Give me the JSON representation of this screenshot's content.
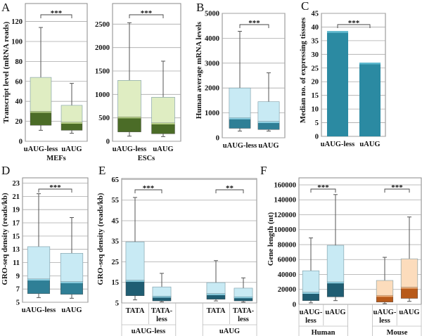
{
  "chart_data": [
    {
      "id": "A1",
      "panel_letter": "A",
      "type": "box",
      "ylabel": "Transcript level (mRNA reads)",
      "sublabel": "MEFs",
      "ylim": [
        0,
        138
      ],
      "yticks": [
        "0",
        "20",
        "40",
        "60",
        "80",
        "100",
        "120"
      ],
      "ytick_values": [
        0,
        20,
        40,
        60,
        80,
        100,
        120
      ],
      "colors": {
        "light": "#dfedc2",
        "dark": "#4b6c27",
        "median": "#b6cf86"
      },
      "categories": [
        {
          "label": [
            "uAUG-less"
          ],
          "min": 11,
          "q1": 16,
          "median": 30,
          "q3": 64,
          "max": 114
        },
        {
          "label": [
            "uAUG"
          ],
          "min": 8,
          "q1": 11,
          "median": 19,
          "q3": 36,
          "max": 58
        }
      ],
      "significance": [
        {
          "between": [
            0,
            1
          ],
          "label": "***"
        }
      ]
    },
    {
      "id": "A2",
      "panel_letter": "",
      "type": "box",
      "ylabel": "",
      "sublabel": "ESCs",
      "ylim": [
        0,
        2940
      ],
      "yticks": [
        "0",
        "500",
        "1000",
        "1500",
        "2000",
        "2500"
      ],
      "ytick_values": [
        0,
        500,
        1000,
        1500,
        2000,
        2500
      ],
      "colors": {
        "light": "#dfedc2",
        "dark": "#4b6c27",
        "median": "#b6cf86"
      },
      "categories": [
        {
          "label": [
            "uAUG-less"
          ],
          "min": 110,
          "q1": 200,
          "median": 520,
          "q3": 1300,
          "max": 2530
        },
        {
          "label": [
            "uAUG"
          ],
          "min": 100,
          "q1": 160,
          "median": 390,
          "q3": 940,
          "max": 1710
        }
      ],
      "significance": [
        {
          "between": [
            0,
            1
          ],
          "label": "***"
        }
      ]
    },
    {
      "id": "B",
      "panel_letter": "B",
      "type": "box",
      "ylabel": "Human average mRNA levels",
      "sublabel": "",
      "ylim": [
        0,
        5000
      ],
      "yticks": [
        "0",
        "1000",
        "2000",
        "3000",
        "4000",
        "5000"
      ],
      "ytick_values": [
        0,
        1000,
        2000,
        3000,
        4000,
        5000
      ],
      "colors": {
        "light": "#c8eaf4",
        "dark": "#2f7f96",
        "median": "#8fd0e2"
      },
      "categories": [
        {
          "label": [
            "uAUG-less"
          ],
          "min": 270,
          "q1": 380,
          "median": 800,
          "q3": 2000,
          "max": 4280
        },
        {
          "label": [
            "uAUG"
          ],
          "min": 270,
          "q1": 330,
          "median": 650,
          "q3": 1450,
          "max": 2610
        }
      ],
      "significance": [
        {
          "between": [
            0,
            1
          ],
          "label": "***"
        }
      ]
    },
    {
      "id": "C",
      "panel_letter": "C",
      "type": "bar",
      "ylabel": "Median no. of expressing tissues",
      "sublabel": "",
      "ylim": [
        0,
        45
      ],
      "yticks": [
        "0",
        "5",
        "10",
        "15",
        "20",
        "25",
        "30",
        "35",
        "40",
        "45"
      ],
      "ytick_values": [
        0,
        5,
        10,
        15,
        20,
        25,
        30,
        35,
        40,
        45
      ],
      "colors": {
        "bar": "#2b8aa2",
        "bar_top": "#5fb9cf"
      },
      "categories": [
        {
          "label": [
            "uAUG-less"
          ],
          "value": 38.5
        },
        {
          "label": [
            "uAUG"
          ],
          "value": 27
        }
      ],
      "significance": [
        {
          "between": [
            0,
            1
          ],
          "label": "***"
        }
      ]
    },
    {
      "id": "D",
      "panel_letter": "D",
      "type": "box",
      "ylabel": "GRO-seq density (reads/kb)",
      "sublabel": "",
      "ylim": [
        5,
        23.8
      ],
      "yticks": [
        "5",
        "7",
        "9",
        "11",
        "13",
        "15",
        "17",
        "19",
        "21",
        "23"
      ],
      "ytick_values": [
        5,
        7,
        9,
        11,
        13,
        15,
        17,
        19,
        21,
        23
      ],
      "colors": {
        "light": "#c8eaf4",
        "dark": "#2f7f96",
        "median": "#8fd0e2"
      },
      "categories": [
        {
          "label": [
            "uAUG-less"
          ],
          "min": 5.7,
          "q1": 6.3,
          "median": 8.5,
          "q3": 13.4,
          "max": 21.4
        },
        {
          "label": [
            "uAUG"
          ],
          "min": 5.6,
          "q1": 6.2,
          "median": 8.1,
          "q3": 12.4,
          "max": 17.8
        }
      ],
      "significance": [
        {
          "between": [
            0,
            1
          ],
          "label": "***"
        }
      ]
    },
    {
      "id": "E",
      "panel_letter": "E",
      "type": "box",
      "ylabel": "GRO-seq density (reads/kb)",
      "sublabel": "",
      "ylim": [
        5,
        65.5
      ],
      "yticks": [
        "5",
        "15",
        "25",
        "35",
        "45",
        "55",
        "65"
      ],
      "ytick_values": [
        5,
        15,
        25,
        35,
        45,
        55,
        65
      ],
      "colors": {
        "light": "#c8eaf4",
        "dark": "#1f5d72",
        "median": "#8fd0e2"
      },
      "categories": [
        {
          "label": [
            "TATA"
          ],
          "min": 6.5,
          "q1": 8.5,
          "median": 16,
          "q3": 34.7,
          "max": 56.3
        },
        {
          "label": [
            "TATA-",
            "less"
          ],
          "min": 5.5,
          "q1": 6,
          "median": 8.3,
          "q3": 12.8,
          "max": 19.4
        },
        {
          "label": [
            "TATA"
          ],
          "min": 6,
          "q1": 6.8,
          "median": 9.5,
          "q3": 14.9,
          "max": 25.6
        },
        {
          "label": [
            "TATA-",
            "less"
          ],
          "min": 5.4,
          "q1": 6,
          "median": 8,
          "q3": 12.2,
          "max": 17.2
        }
      ],
      "groups": [
        {
          "label": "uAUG-less",
          "members": [
            0,
            1
          ]
        },
        {
          "label": "uAUG",
          "members": [
            2,
            3
          ]
        }
      ],
      "significance": [
        {
          "between": [
            0,
            1
          ],
          "label": "***"
        },
        {
          "between": [
            2,
            3
          ],
          "label": "**"
        }
      ]
    },
    {
      "id": "F",
      "panel_letter": "F",
      "type": "box",
      "ylabel": "Gene length (nt)",
      "sublabel": "",
      "ylim": [
        0,
        169400
      ],
      "yticks": [
        "0",
        "20000",
        "40000",
        "60000",
        "80000",
        "100000",
        "120000",
        "140000",
        "160000"
      ],
      "ytick_values": [
        0,
        20000,
        40000,
        60000,
        80000,
        100000,
        120000,
        140000,
        160000
      ],
      "colors": {
        "light": "#c8eaf4",
        "dark": "#1f5d72",
        "median": "#8fd0e2",
        "light_alt": "#fcdcbc",
        "dark_alt": "#b85a1a",
        "median_alt": "#f0b27e"
      },
      "categories": [
        {
          "label": [
            "uAUG-",
            "less"
          ],
          "min": 2000,
          "q1": 5000,
          "median": 16000,
          "q3": 45000,
          "max": 89000
        },
        {
          "label": [
            "uAUG"
          ],
          "min": 5000,
          "q1": 10000,
          "median": 30000,
          "q3": 79000,
          "max": 147000
        },
        {
          "label": [
            "uAUG-",
            "less"
          ],
          "min": 1000,
          "q1": 3000,
          "median": 12000,
          "q3": 32000,
          "max": 63000,
          "alt": true
        },
        {
          "label": [
            "uAUG"
          ],
          "min": 4000,
          "q1": 8000,
          "median": 23000,
          "q3": 61000,
          "max": 117000,
          "alt": true
        }
      ],
      "groups": [
        {
          "label": "Human",
          "members": [
            0,
            1
          ]
        },
        {
          "label": "Mouse",
          "members": [
            2,
            3
          ]
        }
      ],
      "significance": [
        {
          "between": [
            0,
            1
          ],
          "label": "***"
        },
        {
          "between": [
            2,
            3
          ],
          "label": "***"
        }
      ]
    }
  ]
}
